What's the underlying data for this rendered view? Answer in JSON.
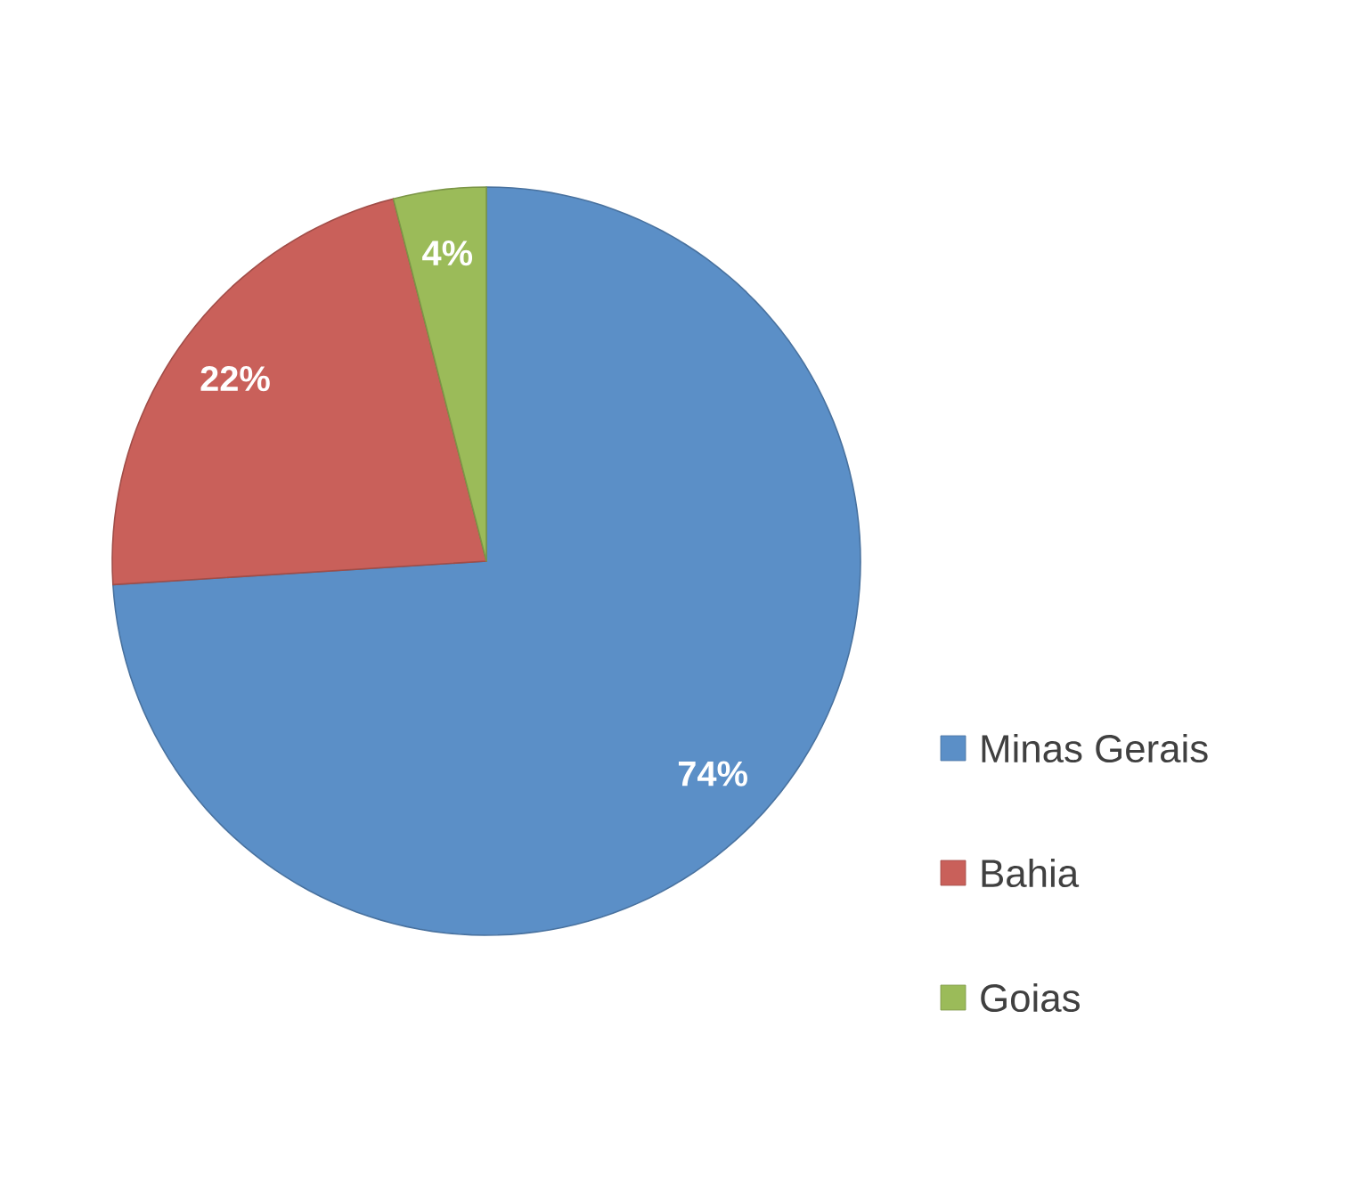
{
  "chart_data": {
    "type": "pie",
    "categories": [
      "Minas Gerais",
      "Bahia",
      "Goias"
    ],
    "values": [
      74,
      22,
      4
    ],
    "colors": [
      "#5b8fc7",
      "#c9605a",
      "#9bbb59"
    ],
    "value_labels": [
      "74%",
      "22%",
      "4%"
    ],
    "legend": "right"
  }
}
